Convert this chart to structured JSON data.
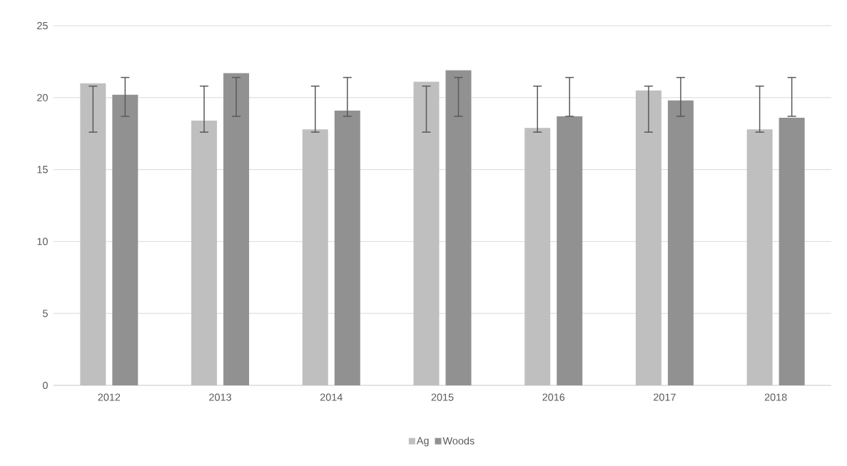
{
  "chart_data": {
    "type": "bar",
    "categories": [
      "2012",
      "2013",
      "2014",
      "2015",
      "2016",
      "2017",
      "2018"
    ],
    "series": [
      {
        "name": "Ag",
        "color": "#bfbfbf",
        "values": [
          21.0,
          18.4,
          17.8,
          21.1,
          17.9,
          20.5,
          17.8
        ],
        "errors": [
          [
            17.6,
            20.8
          ],
          [
            17.6,
            20.8
          ],
          [
            17.6,
            20.8
          ],
          [
            17.6,
            20.8
          ],
          [
            17.6,
            20.8
          ],
          [
            17.6,
            20.8
          ],
          [
            17.6,
            20.8
          ]
        ]
      },
      {
        "name": "Woods",
        "color": "#919191",
        "values": [
          20.2,
          21.7,
          19.1,
          21.9,
          18.7,
          19.8,
          18.6
        ],
        "errors": [
          [
            18.7,
            21.4
          ],
          [
            18.7,
            21.4
          ],
          [
            18.7,
            21.4
          ],
          [
            18.7,
            21.4
          ],
          [
            18.7,
            21.4
          ],
          [
            18.7,
            21.4
          ],
          [
            18.7,
            21.4
          ]
        ]
      }
    ],
    "ylim": [
      0,
      25
    ],
    "yticks": [
      0,
      5,
      10,
      15,
      20,
      25
    ],
    "grid": "y",
    "legend": "bottom"
  }
}
